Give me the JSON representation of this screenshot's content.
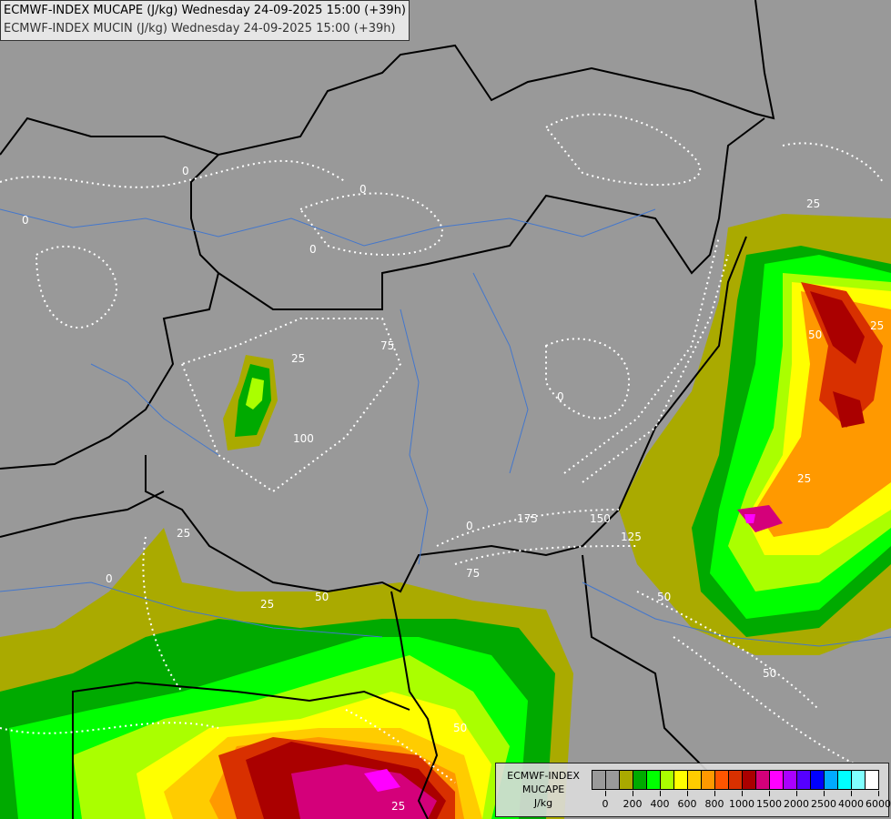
{
  "title": {
    "line1": "ECMWF-INDEX MUCAPE (J/kg) Wednesday 24-09-2025 15:00 (+39h)",
    "line2": "ECMWF-INDEX MUCIN (J/kg) Wednesday 24-09-2025 15:00 (+39h)"
  },
  "legend": {
    "line1": "ECMWF-INDEX",
    "line2": "MUCAPE",
    "line3": "J/kg",
    "colors": [
      "#9a9a9a",
      "#9a9a9a",
      "#aaaa00",
      "#00aa00",
      "#00ff00",
      "#aaff00",
      "#ffff00",
      "#ffcc00",
      "#ff9900",
      "#ff5500",
      "#d83000",
      "#aa0000",
      "#d4007a",
      "#ff00ff",
      "#aa00ff",
      "#5500ff",
      "#0000ff",
      "#00aaff",
      "#00ffff",
      "#80ffff",
      "#ffffff"
    ],
    "labels": [
      "0",
      "200",
      "400",
      "600",
      "800",
      "1000",
      "1500",
      "2000",
      "2500",
      "4000",
      "6000"
    ]
  },
  "map": {
    "background_color": "#999999",
    "border_color": "#000000",
    "river_color": "#4477cc",
    "contour_color": "#ffffff",
    "contour_labels": [
      "0",
      "0",
      "0",
      "0",
      "0",
      "25",
      "25",
      "25",
      "50",
      "50",
      "50",
      "75",
      "75",
      "100",
      "125",
      "150",
      "175",
      "25",
      "50",
      "25",
      "50",
      "25",
      "0",
      "0",
      "25"
    ]
  }
}
